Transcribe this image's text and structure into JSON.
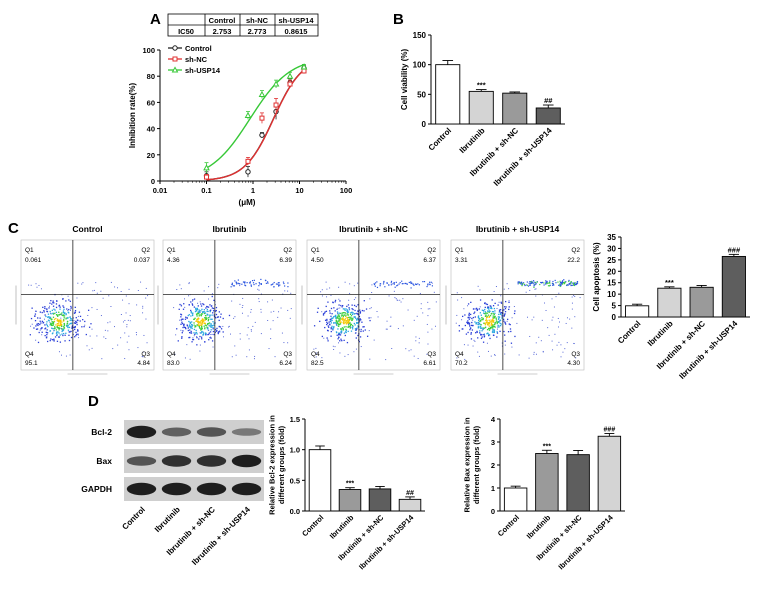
{
  "panels": {
    "A": {
      "letter": "A",
      "ic50_table": {
        "corner": "",
        "headers": [
          "Control",
          "sh-NC",
          "sh-USP14"
        ],
        "row_label": "IC50",
        "values": [
          "2.753",
          "2.773",
          "0.8615"
        ]
      }
    },
    "B": {
      "letter": "B"
    },
    "C": {
      "letter": "C"
    },
    "D": {
      "letter": "D"
    }
  },
  "colors": {
    "control": "#222222",
    "sh_nc": "#e03131",
    "sh_usp14": "#37c837",
    "bar_white": "#ffffff",
    "bar_light": "#d4d4d4",
    "bar_mid": "#9a9a9a",
    "bar_dark": "#5e5e5e"
  },
  "flow": {
    "panels": [
      {
        "title": "Control",
        "q1": "Q1",
        "q2": "Q2",
        "q3": "Q3",
        "q4": "Q4",
        "v1": "0.061",
        "v2": "0.037",
        "v3": "4.84",
        "v4": "95.1"
      },
      {
        "title": "Ibrutinib",
        "q1": "Q1",
        "q2": "Q2",
        "q3": "Q3",
        "q4": "Q4",
        "v1": "4.36",
        "v2": "6.39",
        "v3": "6.24",
        "v4": "83.0"
      },
      {
        "title": "Ibrutinib + sh-NC",
        "q1": "Q1",
        "q2": "Q2",
        "q3": "Q3",
        "q4": "Q4",
        "v1": "4.50",
        "v2": "6.37",
        "v3": "6.61",
        "v4": "82.5"
      },
      {
        "title": "Ibrutinib + sh-USP14",
        "q1": "Q1",
        "q2": "Q2",
        "q3": "Q3",
        "q4": "Q4",
        "v1": "3.31",
        "v2": "22.2",
        "v3": "4.30",
        "v4": "70.2"
      }
    ]
  },
  "blot": {
    "rows": [
      "Bcl-2",
      "Bax",
      "GAPDH"
    ],
    "lanes": [
      "Control",
      "Ibrutinib",
      "Ibrutinib + sh-NC",
      "Ibrutinib + sh-USP14"
    ],
    "intensities": [
      [
        1.0,
        0.45,
        0.55,
        0.25
      ],
      [
        0.55,
        0.85,
        0.85,
        1.0
      ],
      [
        1.0,
        1.0,
        1.0,
        1.0
      ]
    ]
  },
  "chart_data": [
    {
      "type": "scatter",
      "panel": "A",
      "xlabel": "(μM)",
      "ylabel": "Inhibition rate(%)",
      "xscale": "log",
      "xlim": [
        0.01,
        100
      ],
      "ylim": [
        0,
        100
      ],
      "xticks": [
        "0.01",
        "0.1",
        "1",
        "10",
        "100"
      ],
      "yticks": [
        "0",
        "20",
        "40",
        "60",
        "80",
        "100"
      ],
      "legend": "top-left",
      "series": [
        {
          "name": "Control",
          "color": "#222222",
          "marker": "circle",
          "x": [
            0.1,
            0.78,
            1.56,
            3.13,
            6.25,
            12.5
          ],
          "y": [
            4,
            7,
            35,
            53,
            75,
            86
          ],
          "err": [
            3,
            4,
            2,
            6,
            3,
            2
          ],
          "ic50": 2.753
        },
        {
          "name": "sh-NC",
          "color": "#e03131",
          "marker": "square",
          "x": [
            0.1,
            0.78,
            1.56,
            3.13,
            6.25,
            12.5
          ],
          "y": [
            3,
            15,
            48,
            58,
            74,
            84
          ],
          "err": [
            2,
            3,
            4,
            5,
            3,
            2
          ],
          "ic50": 2.773
        },
        {
          "name": "sh-USP14",
          "color": "#37c837",
          "marker": "triangle",
          "x": [
            0.1,
            0.78,
            1.56,
            3.13,
            6.25,
            12.5
          ],
          "y": [
            10,
            50,
            66,
            74,
            80,
            87
          ],
          "err": [
            4,
            3,
            3,
            3,
            3,
            2
          ],
          "ic50": 0.8615
        }
      ]
    },
    {
      "type": "bar",
      "panel": "B",
      "ylabel": "Cell viability (%)",
      "categories": [
        "Control",
        "Ibrutinib",
        "Ibrutinib + sh-NC",
        "Ibrutinib + sh-USP14"
      ],
      "values": [
        100,
        55,
        52,
        27
      ],
      "errors": [
        7,
        3,
        2,
        5
      ],
      "annotations": [
        "",
        "***",
        "",
        "##"
      ],
      "ylim": [
        0,
        150
      ],
      "yticks": [
        "0",
        "50",
        "100",
        "150"
      ]
    },
    {
      "type": "bar",
      "panel": "C",
      "ylabel": "Cell apoptosis (%)",
      "categories": [
        "Control",
        "Ibrutinib",
        "Ibrutinib + sh-NC",
        "Ibrutinib + sh-USP14"
      ],
      "values": [
        4.9,
        12.6,
        13.0,
        26.5
      ],
      "errors": [
        0.7,
        0.6,
        0.8,
        0.9
      ],
      "annotations": [
        "",
        "***",
        "",
        "###"
      ],
      "ylim": [
        0,
        35
      ],
      "yticks": [
        "0",
        "5",
        "10",
        "15",
        "20",
        "25",
        "30",
        "35"
      ]
    },
    {
      "type": "bar",
      "panel": "D",
      "ylabel": "Relative Bcl-2 expression in different groups (fold)",
      "ylabel_lines": [
        "Relative Bcl-2 expression in",
        "different groups (fold)"
      ],
      "categories": [
        "Control",
        "Ibrutinib",
        "Ibrutinib + sh-NC",
        "Ibrutinib + sh-USP14"
      ],
      "values": [
        1.0,
        0.35,
        0.36,
        0.19
      ],
      "errors": [
        0.06,
        0.03,
        0.04,
        0.04
      ],
      "annotations": [
        "",
        "***",
        "",
        "##"
      ],
      "ylim": [
        0,
        1.5
      ],
      "yticks": [
        "0.0",
        "0.5",
        "1.0",
        "1.5"
      ]
    },
    {
      "type": "bar",
      "panel": "D",
      "ylabel": "Relative Bax expression in different groups (fold)",
      "ylabel_lines": [
        "Relative Bax expression in",
        "different groups (fold)"
      ],
      "categories": [
        "Control",
        "Ibrutinib",
        "Ibrutinib + sh-NC",
        "Ibrutinib + sh-USP14"
      ],
      "values": [
        1.0,
        2.5,
        2.45,
        3.25
      ],
      "errors": [
        0.08,
        0.14,
        0.18,
        0.12
      ],
      "annotations": [
        "",
        "***",
        "",
        "###"
      ],
      "ylim": [
        0,
        4
      ],
      "yticks": [
        "0",
        "1",
        "2",
        "3",
        "4"
      ]
    }
  ]
}
